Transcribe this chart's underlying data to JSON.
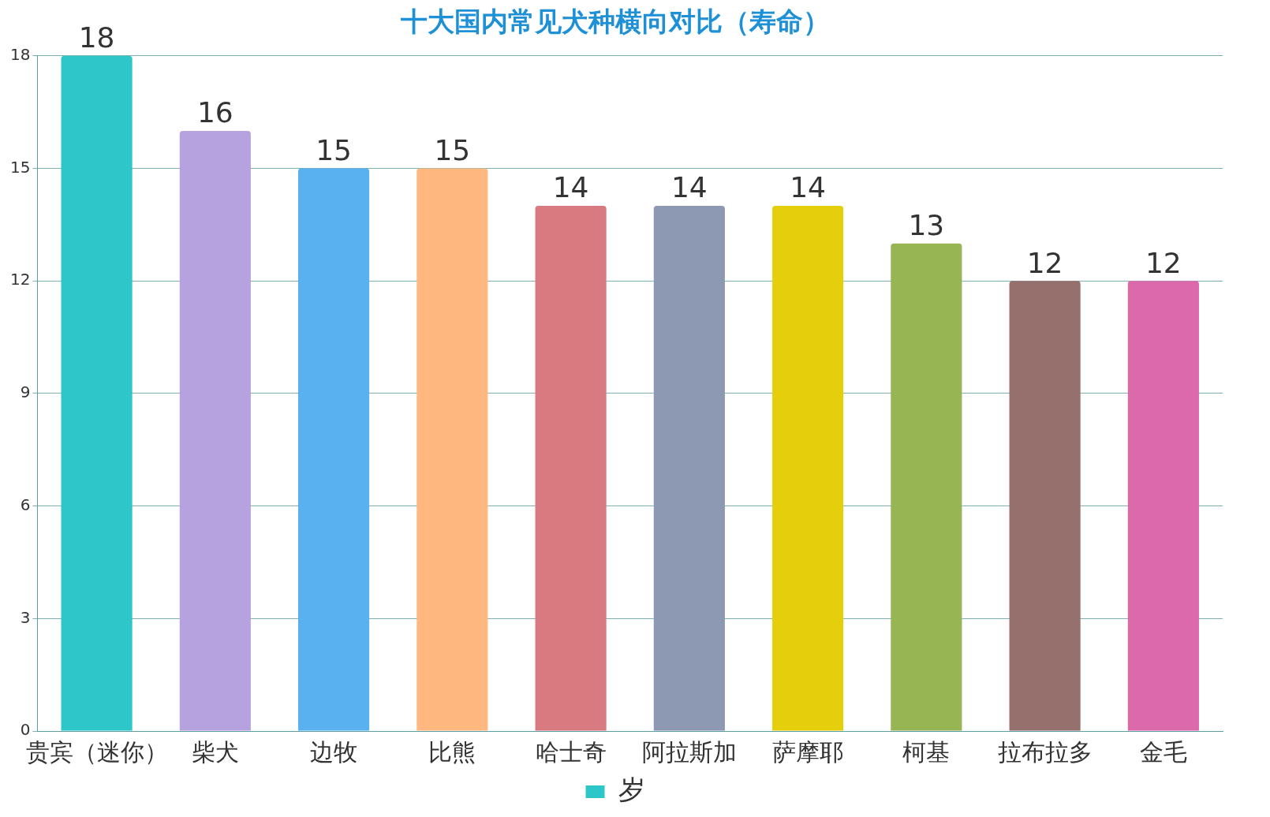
{
  "chart_data": {
    "type": "bar",
    "title": "十大国内常见犬种横向对比（寿命）",
    "categories": [
      "贵宾（迷你）",
      "柴犬",
      "边牧",
      "比熊",
      "哈士奇",
      "阿拉斯加",
      "萨摩耶",
      "柯基",
      "拉布拉多",
      "金毛"
    ],
    "series": [
      {
        "name": "岁",
        "values": [
          18,
          16,
          15,
          15,
          14,
          14,
          14,
          13,
          12,
          12
        ],
        "colors": [
          "#2ec7c9",
          "#b6a2de",
          "#5ab1ef",
          "#ffb980",
          "#d87a80",
          "#8d98b3",
          "#e5cf0d",
          "#97b552",
          "#95706d",
          "#dc69aa"
        ]
      }
    ],
    "ylim": [
      0,
      18
    ],
    "yticks": [
      0,
      3,
      6,
      9,
      12,
      15,
      18
    ],
    "grid": "y",
    "legend": "bottom",
    "data_labels": true
  }
}
